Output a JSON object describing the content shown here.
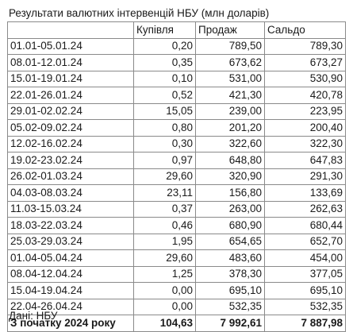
{
  "title": "Результати валютних інтервенцій НБУ (млн доларів)",
  "columns": [
    "",
    "Купівля",
    "Продаж",
    "Сальдо"
  ],
  "rows": [
    {
      "period": "01.01-05.01.24",
      "buy": "0,20",
      "sell": "789,50",
      "balance": "789,30"
    },
    {
      "period": "08.01-12.01.24",
      "buy": "0,35",
      "sell": "673,62",
      "balance": "673,27"
    },
    {
      "period": "15.01-19.01.24",
      "buy": "0,10",
      "sell": "531,00",
      "balance": "530,90"
    },
    {
      "period": "22.01-26.01.24",
      "buy": "0,52",
      "sell": "421,30",
      "balance": "420,78"
    },
    {
      "period": "29.01-02.02.24",
      "buy": "15,05",
      "sell": "239,00",
      "balance": "223,95"
    },
    {
      "period": "05.02-09.02.24",
      "buy": "0,80",
      "sell": "201,20",
      "balance": "200,40"
    },
    {
      "period": "12.02-16.02.24",
      "buy": "0,30",
      "sell": "322,60",
      "balance": "322,30"
    },
    {
      "period": "19.02-23.02.24",
      "buy": "0,97",
      "sell": "648,80",
      "balance": "647,83"
    },
    {
      "period": "26.02-01.03.24",
      "buy": "29,60",
      "sell": "320,90",
      "balance": "291,30"
    },
    {
      "period": "04.03-08.03.24",
      "buy": "23,11",
      "sell": "156,80",
      "balance": "133,69"
    },
    {
      "period": "11.03-15.03.24",
      "buy": "0,37",
      "sell": "263,00",
      "balance": "262,63"
    },
    {
      "period": "18.03-22.03.24",
      "buy": "0,46",
      "sell": "680,90",
      "balance": "680,44"
    },
    {
      "period": "25.03-29.03.24",
      "buy": "1,95",
      "sell": "654,65",
      "balance": "652,70"
    },
    {
      "period": "01.04-05.04.24",
      "buy": "29,60",
      "sell": "483,60",
      "balance": "454,00"
    },
    {
      "period": "08.04-12.04.24",
      "buy": "1,25",
      "sell": "378,30",
      "balance": "377,05"
    },
    {
      "period": "15.04-19.04.24",
      "buy": "0,00",
      "sell": "695,10",
      "balance": "695,10"
    },
    {
      "period": "22.04-26.04.24",
      "buy": "0,00",
      "sell": "532,35",
      "balance": "532,35"
    }
  ],
  "total": {
    "period": "З початку 2024 року",
    "buy": "104,63",
    "sell": "7 992,61",
    "balance": "7 887,98"
  },
  "source": "Дані: НБУ"
}
